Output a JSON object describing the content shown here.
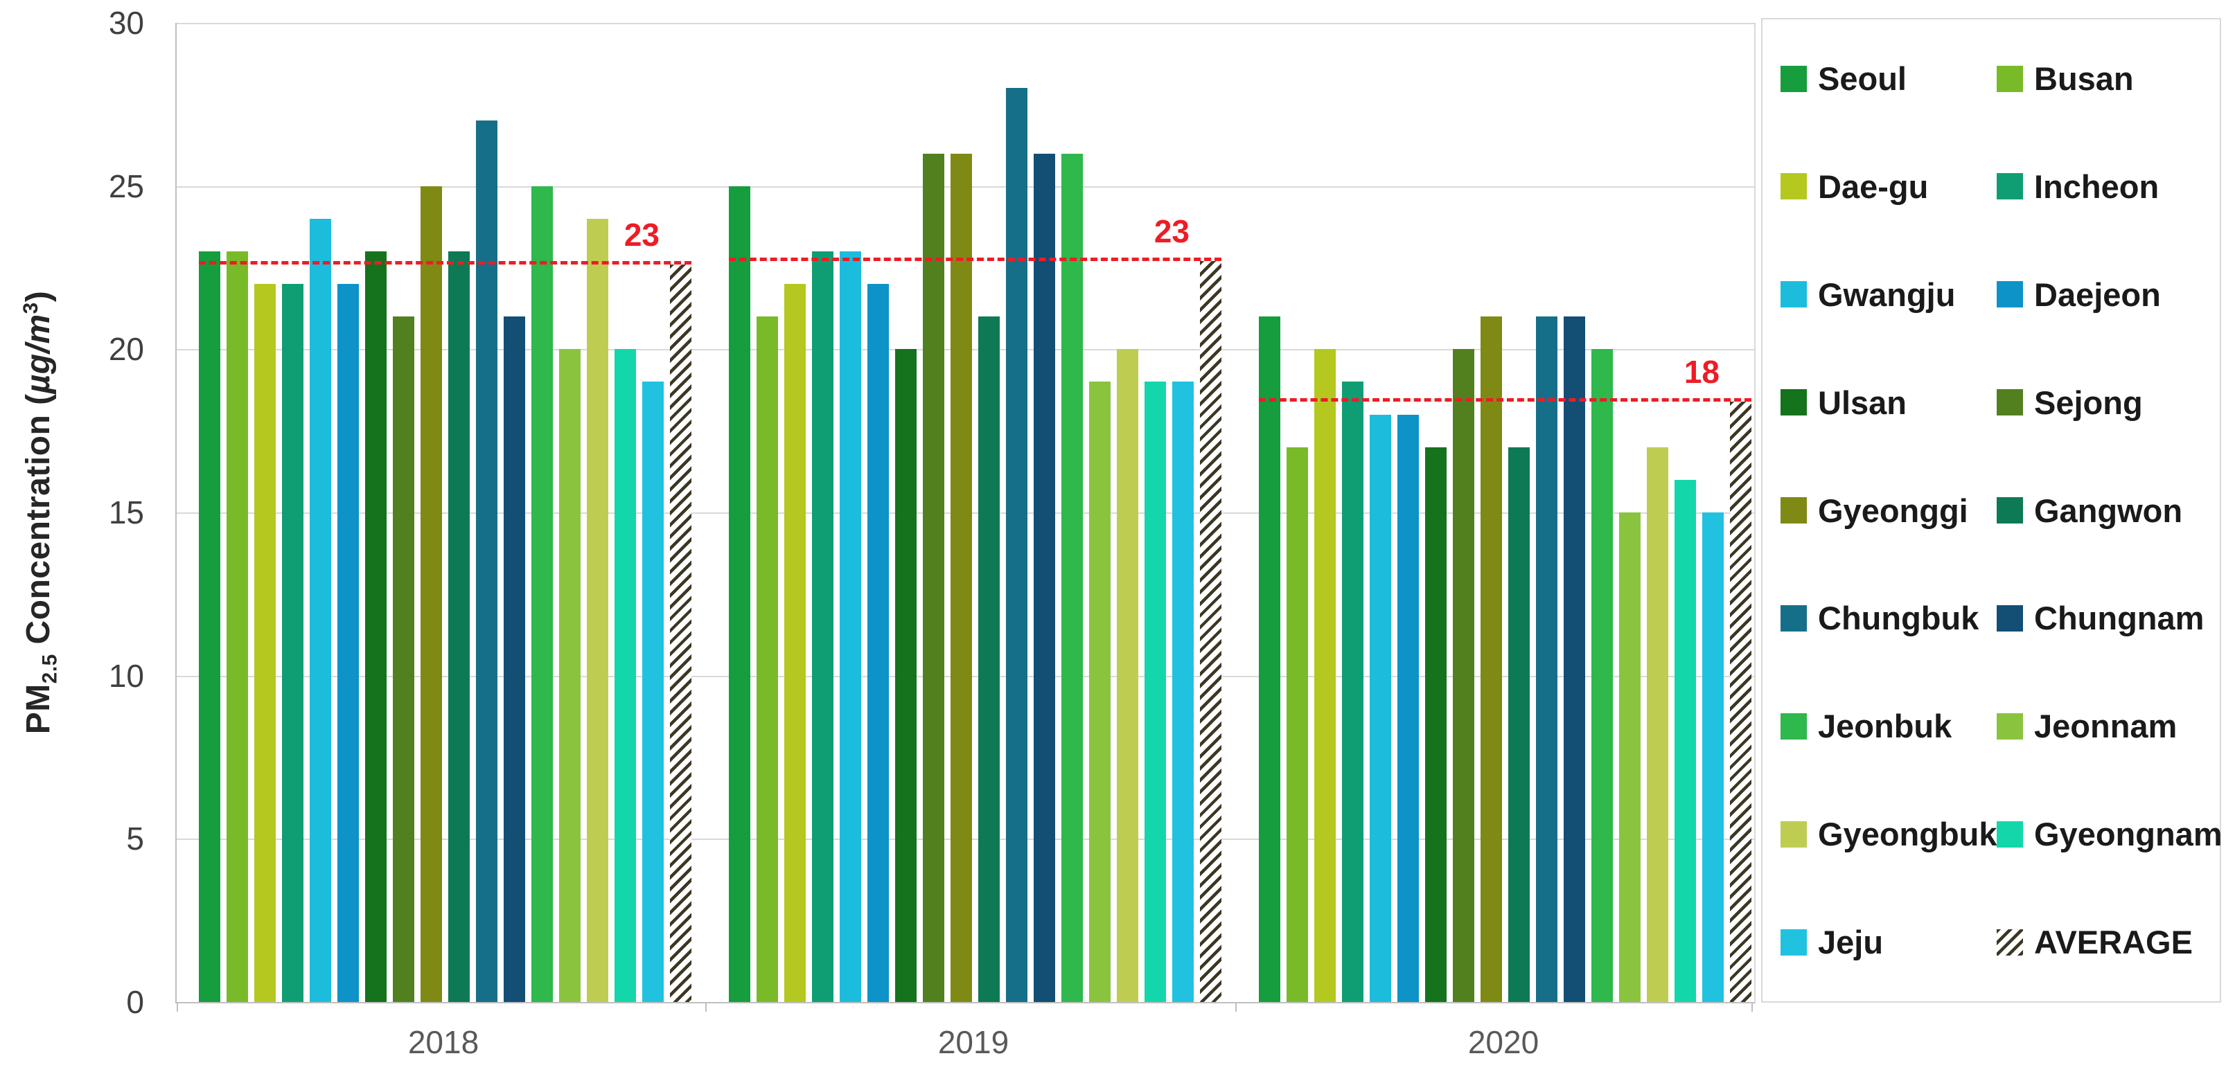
{
  "chart_data": {
    "type": "bar",
    "title": "",
    "xlabel": "",
    "ylabel": "PM2.5 Concentration (µg/m³)",
    "ylabel_parts": {
      "pm": "PM",
      "sub": "2.5",
      "mid": " Concentration (",
      "unit": "µg/m",
      "sup": "3",
      "close": ")"
    },
    "ylim": [
      0,
      30
    ],
    "yticks": [
      "0",
      "5",
      "10",
      "15",
      "20",
      "25",
      "30"
    ],
    "grid": true,
    "legend_position": "right",
    "categories": [
      "2018",
      "2019",
      "2020"
    ],
    "series": [
      {
        "name": "Seoul",
        "color": "#169d3d",
        "values": [
          23,
          25,
          21
        ]
      },
      {
        "name": "Busan",
        "color": "#79ba28",
        "values": [
          23,
          21,
          17
        ]
      },
      {
        "name": "Dae-gu",
        "color": "#b4c81f",
        "values": [
          22,
          22,
          20
        ]
      },
      {
        "name": "Incheon",
        "color": "#0f9e74",
        "values": [
          22,
          23,
          19
        ]
      },
      {
        "name": "Gwangju",
        "color": "#1cbcdc",
        "values": [
          24,
          23,
          18
        ]
      },
      {
        "name": "Daejeon",
        "color": "#0d93c8",
        "values": [
          22,
          22,
          18
        ]
      },
      {
        "name": "Ulsan",
        "color": "#15721d",
        "values": [
          23,
          20,
          17
        ]
      },
      {
        "name": "Sejong",
        "color": "#53801f",
        "values": [
          21,
          26,
          20
        ]
      },
      {
        "name": "Gyeonggi",
        "color": "#7f8a15",
        "values": [
          25,
          26,
          21
        ]
      },
      {
        "name": "Gangwon",
        "color": "#0d7a55",
        "values": [
          23,
          21,
          17
        ]
      },
      {
        "name": "Chungbuk",
        "color": "#166f88",
        "values": [
          27,
          28,
          21
        ]
      },
      {
        "name": "Chungnam",
        "color": "#134e75",
        "values": [
          21,
          26,
          21
        ]
      },
      {
        "name": "Jeonbuk",
        "color": "#2fb84c",
        "values": [
          25,
          26,
          20
        ]
      },
      {
        "name": "Jeonnam",
        "color": "#8ac43e",
        "values": [
          20,
          19,
          15
        ]
      },
      {
        "name": "Gyeongbuk",
        "color": "#becd52",
        "values": [
          24,
          20,
          17
        ]
      },
      {
        "name": "Gyeongnam",
        "color": "#13d7ab",
        "values": [
          20,
          19,
          16
        ]
      },
      {
        "name": "Jeju",
        "color": "#20c2e0",
        "values": [
          19,
          19,
          15
        ]
      }
    ],
    "average": {
      "name": "AVERAGE",
      "values": [
        22.6,
        22.7,
        18.4
      ],
      "labels": [
        "23",
        "23",
        "18"
      ],
      "line_color": "#ee1c25",
      "hatch_color": "#3c3723",
      "grid_color": "#d9d9d9"
    }
  }
}
